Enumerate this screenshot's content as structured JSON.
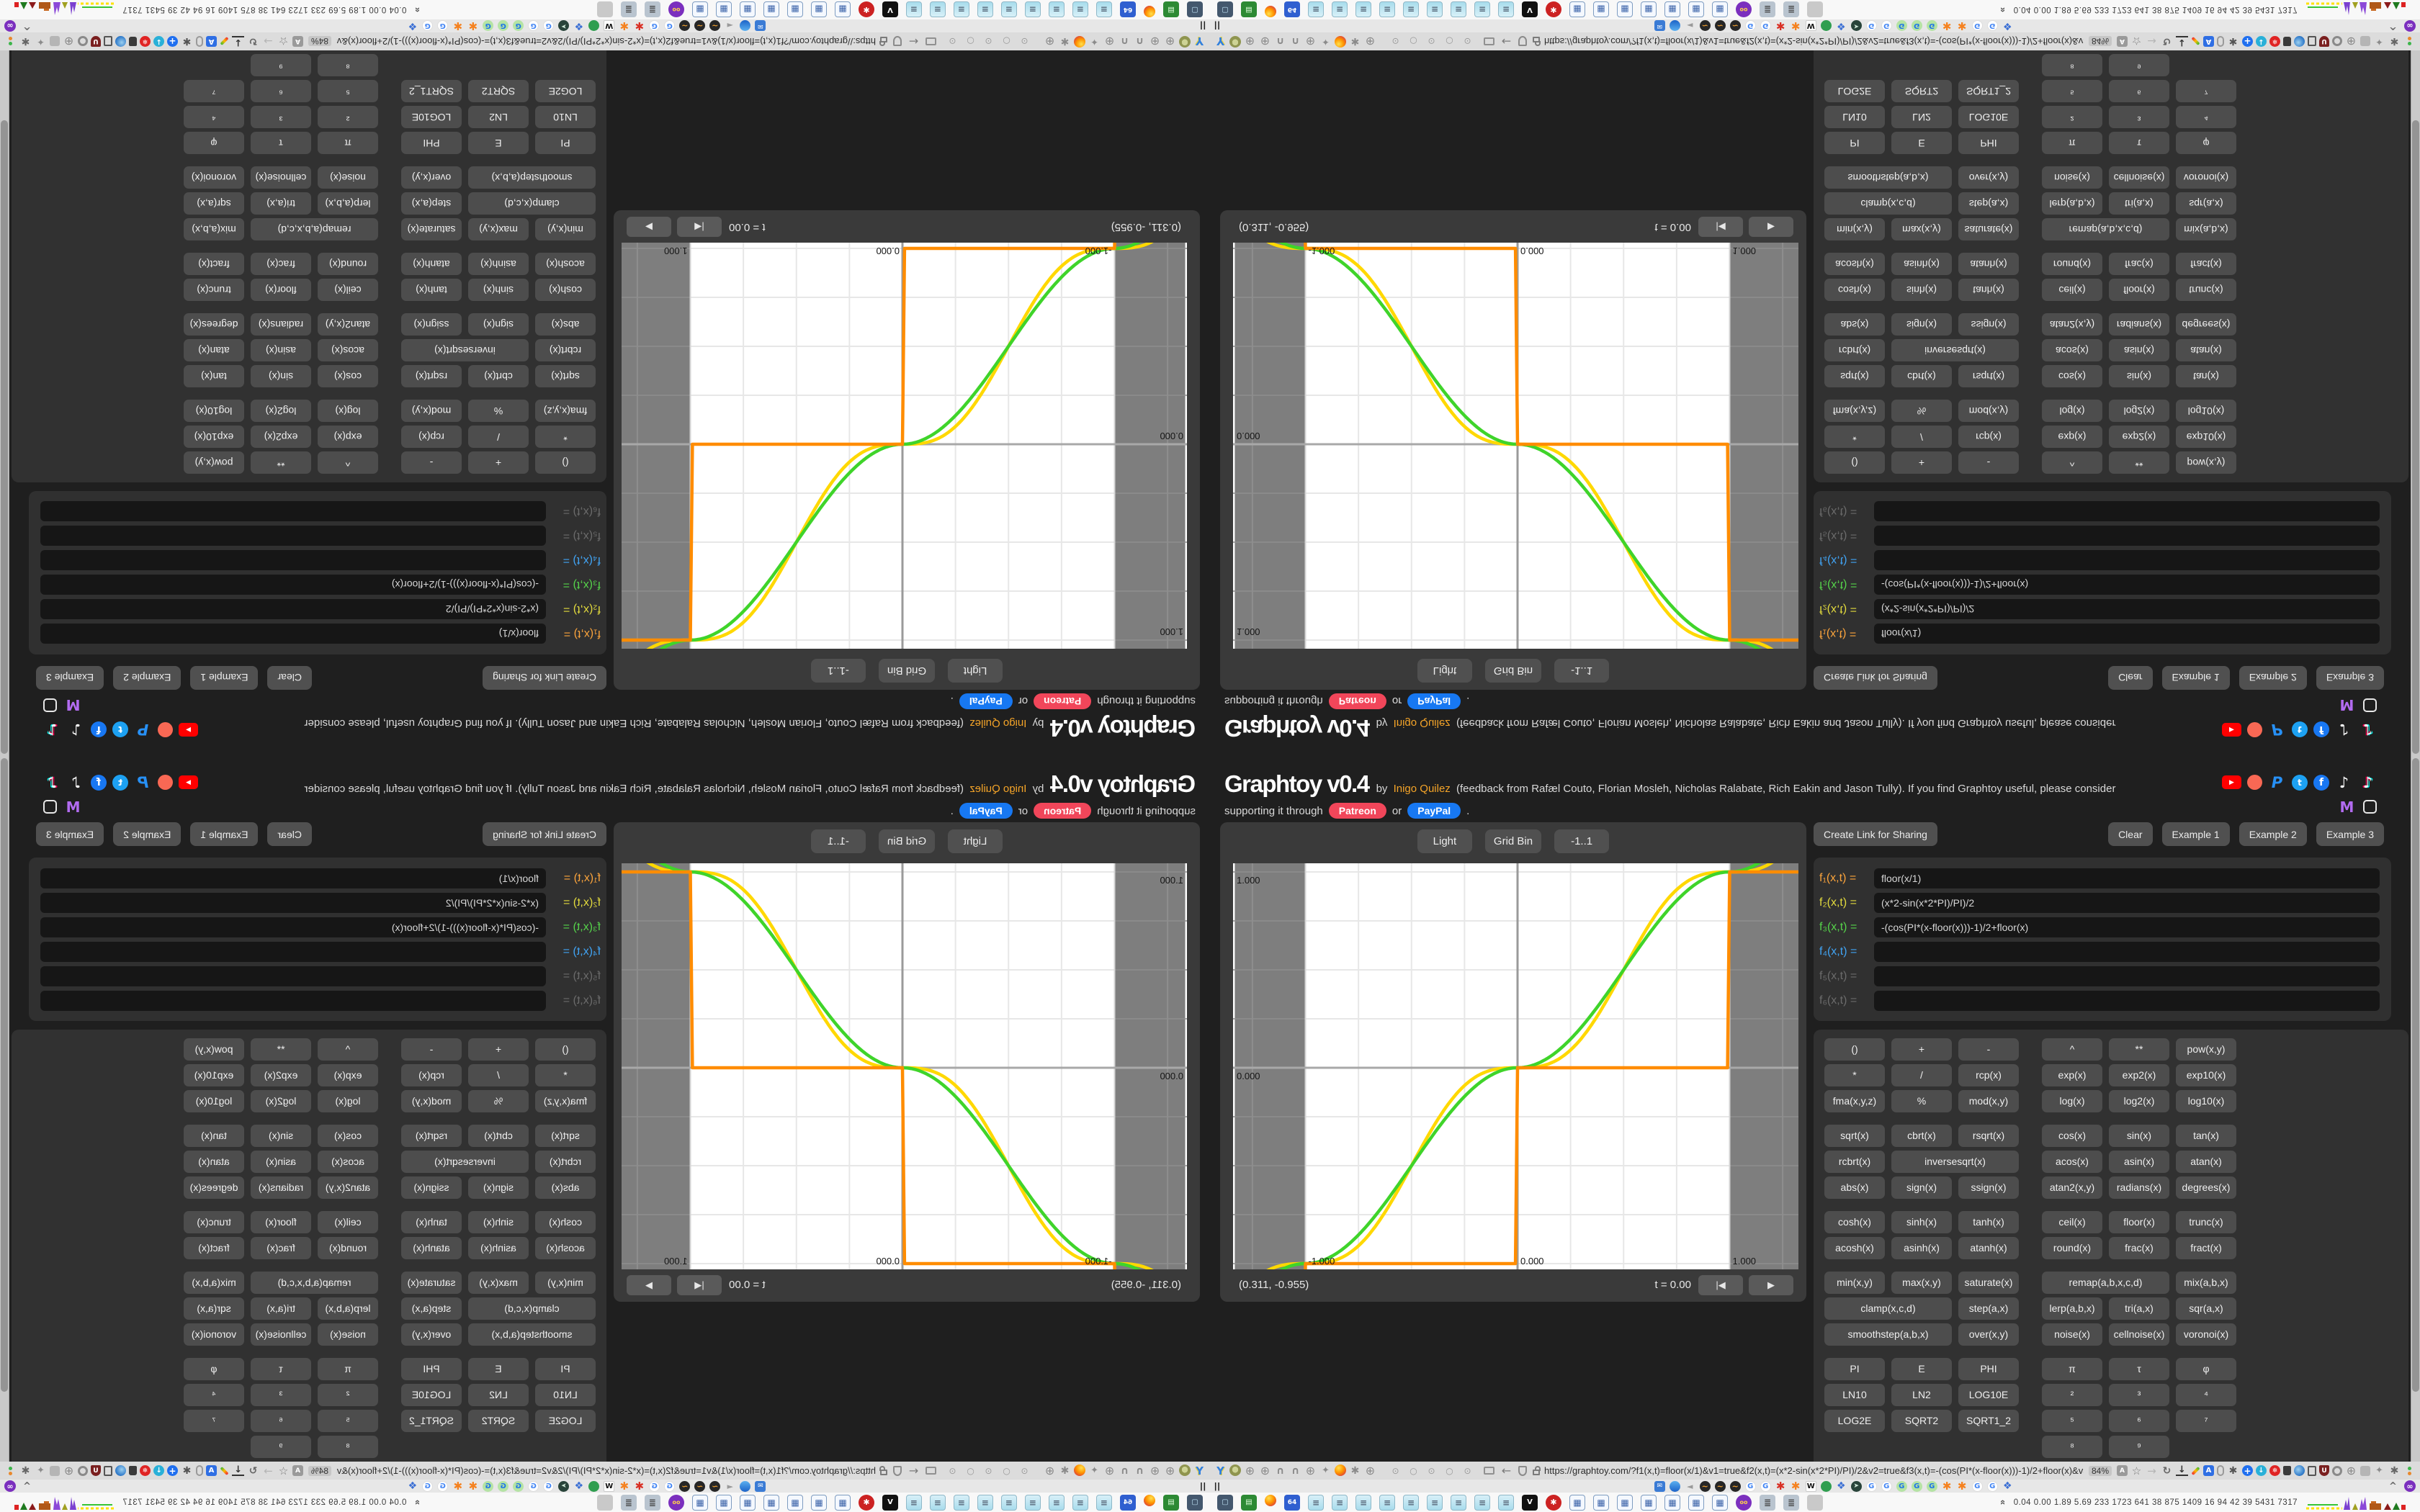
{
  "header": {
    "title": "Graphtoy v0.4",
    "byline_prefix": "by",
    "author_link": "Inigo Quilez",
    "byline_rest": "(feedback from Rafæl Couto, Florian Mosleh, Nicholas Ralabate, Rich Eakin and Jason Tully). If you find Graphtoy useful, please consider",
    "support_prefix": "supporting it through",
    "patreon_label": "Patreon",
    "support_or": "or",
    "paypal_label": "PayPal",
    "support_suffix": ".",
    "social_row1": [
      "youtube-icon",
      "patreon-icon",
      "paypal-icon",
      "twitter-icon",
      "facebook-icon",
      "tiktok-light-icon",
      "tiktok-icon"
    ],
    "social_row2": [
      "mastodon-icon",
      "instagram-icon"
    ]
  },
  "graph": {
    "theme_button": "Light",
    "grid_button": "Grid Bin",
    "range_button": "-1..1",
    "coordinates": "(0.311, -0.955)",
    "time_label": "t = 0.00",
    "playback_restart": "|◀",
    "playback_play": "▶"
  },
  "chart_data": {
    "type": "line",
    "title": "",
    "xlabel": "",
    "ylabel": "",
    "x_range": [
      -1.333,
      1.333
    ],
    "y_range": [
      -1.04,
      1.04
    ],
    "grid_spacing": 0.25,
    "grid_on": true,
    "shaded_bands_x": [
      [
        -1.333,
        -1.0
      ],
      [
        1.0,
        1.333
      ]
    ],
    "band_color": "#7e7e7e",
    "left_tick_labels": [
      {
        "value": 1,
        "label": "1.000"
      },
      {
        "value": 0,
        "label": "0.000"
      }
    ],
    "bottom_tick_labels": [
      {
        "value": -1,
        "label": "-1.000"
      },
      {
        "value": 0,
        "label": "0.000"
      },
      {
        "value": 1,
        "label": "1.000"
      }
    ],
    "series": [
      {
        "name": "f1",
        "formula": "floor(x/1)",
        "color": "#ff8c00"
      },
      {
        "name": "f2",
        "formula": "(x*2-sin(x*2*PI)/PI)/2",
        "color": "#ffd800"
      },
      {
        "name": "f3",
        "formula": "-(cos(PI*(x-floor(x)))-1)/2+floor(x)",
        "color": "#3fd42a"
      }
    ]
  },
  "panel": {
    "create_link_label": "Create Link for Sharing",
    "clear_label": "Clear",
    "example_labels": [
      "Example 1",
      "Example 2",
      "Example 3"
    ],
    "formulas": [
      {
        "name": "f₁(x,t) =",
        "value": "floor(x/1)",
        "color": "#fba43c"
      },
      {
        "name": "f₂(x,t) =",
        "value": "(x*2-sin(x*2*PI)/PI)/2",
        "color": "#e3db3d"
      },
      {
        "name": "f₃(x,t) =",
        "value": "-(cos(PI*(x-floor(x)))-1)/2+floor(x)",
        "color": "#55d44a"
      },
      {
        "name": "f₄(x,t) =",
        "value": "",
        "color": "#41a4f4"
      },
      {
        "name": "f₅(x,t) =",
        "value": "",
        "color": "#6b6b6b"
      },
      {
        "name": "f₆(x,t) =",
        "value": "",
        "color": "#6b6b6b"
      }
    ],
    "button_rows": [
      {
        "cells": [
          {
            "l": "()"
          },
          {
            "l": "+"
          },
          {
            "l": "-"
          },
          {
            "l": "^"
          },
          {
            "l": "**"
          },
          {
            "l": "pow(x,y)"
          }
        ],
        "gap_after": false
      },
      {
        "cells": [
          {
            "l": "*"
          },
          {
            "l": "/"
          },
          {
            "l": "rcp(x)"
          },
          {
            "l": "exp(x)"
          },
          {
            "l": "exp2(x)"
          },
          {
            "l": "exp10(x)"
          }
        ],
        "gap_after": false
      },
      {
        "cells": [
          {
            "l": "fma(x,y,z)"
          },
          {
            "l": "%"
          },
          {
            "l": "mod(x,y)"
          },
          {
            "l": "log(x)"
          },
          {
            "l": "log2(x)"
          },
          {
            "l": "log10(x)"
          }
        ],
        "gap_after": true
      },
      {
        "cells": [
          {
            "l": "sqrt(x)"
          },
          {
            "l": "cbrt(x)"
          },
          {
            "l": "rsqrt(x)"
          },
          {
            "l": "cos(x)"
          },
          {
            "l": "sin(x)"
          },
          {
            "l": "tan(x)"
          }
        ],
        "gap_after": false
      },
      {
        "cells": [
          {
            "l": "rcbrt(x)"
          },
          {
            "l": "inversesqrt(x)",
            "span": 2
          },
          {
            "l": "acos(x)"
          },
          {
            "l": "asin(x)"
          },
          {
            "l": "atan(x)"
          }
        ],
        "gap_after": false
      },
      {
        "cells": [
          {
            "l": "abs(x)"
          },
          {
            "l": "sign(x)"
          },
          {
            "l": "ssign(x)"
          },
          {
            "l": "atan2(x,y)"
          },
          {
            "l": "radians(x)"
          },
          {
            "l": "degrees(x)"
          }
        ],
        "gap_after": true
      },
      {
        "cells": [
          {
            "l": "cosh(x)"
          },
          {
            "l": "sinh(x)"
          },
          {
            "l": "tanh(x)"
          },
          {
            "l": "ceil(x)"
          },
          {
            "l": "floor(x)"
          },
          {
            "l": "trunc(x)"
          }
        ],
        "gap_after": false
      },
      {
        "cells": [
          {
            "l": "acosh(x)"
          },
          {
            "l": "asinh(x)"
          },
          {
            "l": "atanh(x)"
          },
          {
            "l": "round(x)"
          },
          {
            "l": "frac(x)"
          },
          {
            "l": "fract(x)"
          }
        ],
        "gap_after": true
      },
      {
        "cells": [
          {
            "l": "min(x,y)"
          },
          {
            "l": "max(x,y)"
          },
          {
            "l": "saturate(x)"
          },
          {
            "l": "remap(a,b,x,c,d)",
            "span": 2
          },
          {
            "l": "mix(a,b,x)"
          }
        ],
        "gap_after": false
      },
      {
        "cells": [
          {
            "l": "clamp(x,c,d)",
            "span": 2
          },
          {
            "l": "step(a,x)"
          },
          {
            "l": "lerp(a,b,x)"
          },
          {
            "l": "tri(a,x)"
          },
          {
            "l": "sqr(a,x)"
          }
        ],
        "gap_after": false
      },
      {
        "cells": [
          {
            "l": "smoothstep(a,b,x)",
            "span": 2
          },
          {
            "l": "over(x,y)"
          },
          {
            "l": "noise(x)"
          },
          {
            "l": "cellnoise(x)"
          },
          {
            "l": "voronoi(x)"
          }
        ],
        "gap_after": true
      },
      {
        "cells": [
          {
            "l": "PI"
          },
          {
            "l": "E"
          },
          {
            "l": "PHI"
          },
          {
            "l": "π"
          },
          {
            "l": "τ"
          },
          {
            "l": "φ"
          }
        ],
        "gap_after": false
      },
      {
        "cells": [
          {
            "l": "LN10"
          },
          {
            "l": "LN2"
          },
          {
            "l": "LOG10E"
          },
          {
            "l": "²"
          },
          {
            "l": "³"
          },
          {
            "l": "⁴"
          }
        ],
        "gap_after": false
      },
      {
        "cells": [
          {
            "l": "LOG2E"
          },
          {
            "l": "SQRT2"
          },
          {
            "l": "SQRT1_2"
          },
          {
            "l": "⁵"
          },
          {
            "l": "⁶"
          },
          {
            "l": "⁷"
          }
        ],
        "gap_after": false
      },
      {
        "cells": [
          {
            "l": "",
            "blank": true
          },
          {
            "l": "",
            "blank": true
          },
          {
            "l": "",
            "blank": true
          },
          {
            "l": "⁸"
          },
          {
            "l": "⁹"
          },
          {
            "l": "",
            "blank": true
          }
        ],
        "gap_after": false
      }
    ]
  },
  "browser_chrome": {
    "address_bar": {
      "left_icons": [
        "balloon-icon",
        "avatar-icon",
        "globe-icon",
        "globe-icon",
        "headset-icon",
        "headset-icon",
        "globe-icon",
        "wrench-icon",
        "firefox-icon",
        "gear-icon",
        "globe-icon"
      ],
      "tab_indicator_icons": [
        "dot-circle-icon",
        "circle-icon",
        "dot-circle-icon",
        "circle-icon",
        "dot-circle-icon"
      ],
      "nav_icons": [
        "folder-icon",
        "back-arrow-icon",
        "shield-icon",
        "lock-icon"
      ],
      "url": "https://graphtoy.com/?f1(x,t)=floor(x/1)&v1=true&f2(x,t)=(x*2-sin(x*2*PI)/PI)/2&v2=true&f3(x,t)=-(cos(PI*(x-floor(x)))-1)/2+floor(x)&v3=true&f4(x,t)=&v4=true&f5(x,t)=&v5=false",
      "zoom_badge": "84%",
      "right_icons": [
        "translate-page-icon",
        "star-icon",
        "forward-arrow-icon",
        "reload-icon",
        "download-icon",
        "highlighter-icon",
        "translate-icon",
        "mouse-icon",
        "gear-dark-icon",
        "plus-circle-icon",
        "pushdown-shield-icon",
        "ice-badge-icon",
        "trash-icon",
        "globe-color-icon",
        "bin-icon",
        "ublock-icon",
        "privacy-shield-icon",
        "globe-grid-icon",
        "puzzle-icon",
        "wrench-icon",
        "settings-gear-icon",
        "menu-dots-icon"
      ]
    },
    "bookmarks_bar": {
      "left_glyph": "||",
      "icons": [
        "mail-icon",
        "droplet-icon",
        "muted-speaker-icon",
        "waveform-icon",
        "waveform-icon",
        "waveform-icon",
        "google-icon",
        "google-icon",
        "gear-red-icon",
        "gear-orange-icon",
        "wikipedia-icon",
        "bird-icon",
        "cube-icon",
        "compass-icon",
        "google-icon",
        "google-icon",
        "google-green-icon",
        "google-green-icon",
        "google-green-icon",
        "gear-orange-icon",
        "gear-orange-icon",
        "google-icon",
        "google-icon",
        "cube-icon"
      ],
      "right_icons": [
        "chevron-up-icon",
        "infinity-badge-icon"
      ]
    },
    "taskbar": {
      "app_icons": [
        "display-icon",
        "book-icon",
        "firefox-icon",
        "floppy64-icon",
        "notepad-icon",
        "notepad-icon",
        "notepad-icon",
        "notepad-icon",
        "notepad-icon",
        "notepad-icon",
        "notepad-icon",
        "notepad-icon",
        "notepad-icon",
        "video-icon",
        "red-badge-icon",
        "calculator-icon",
        "calculator-icon",
        "calculator-icon",
        "calculator-icon",
        "calculator-icon",
        "calculator-icon",
        "calculator-icon",
        "purple-app-icon",
        "script-icon",
        "script-icon",
        "hand-icon"
      ],
      "monitor_chevron": "«",
      "monitor_values": "0.04 0.00 1.89 5.69 233 1723 641 38 875 1409 16 94 42 39 5431 7317"
    }
  }
}
